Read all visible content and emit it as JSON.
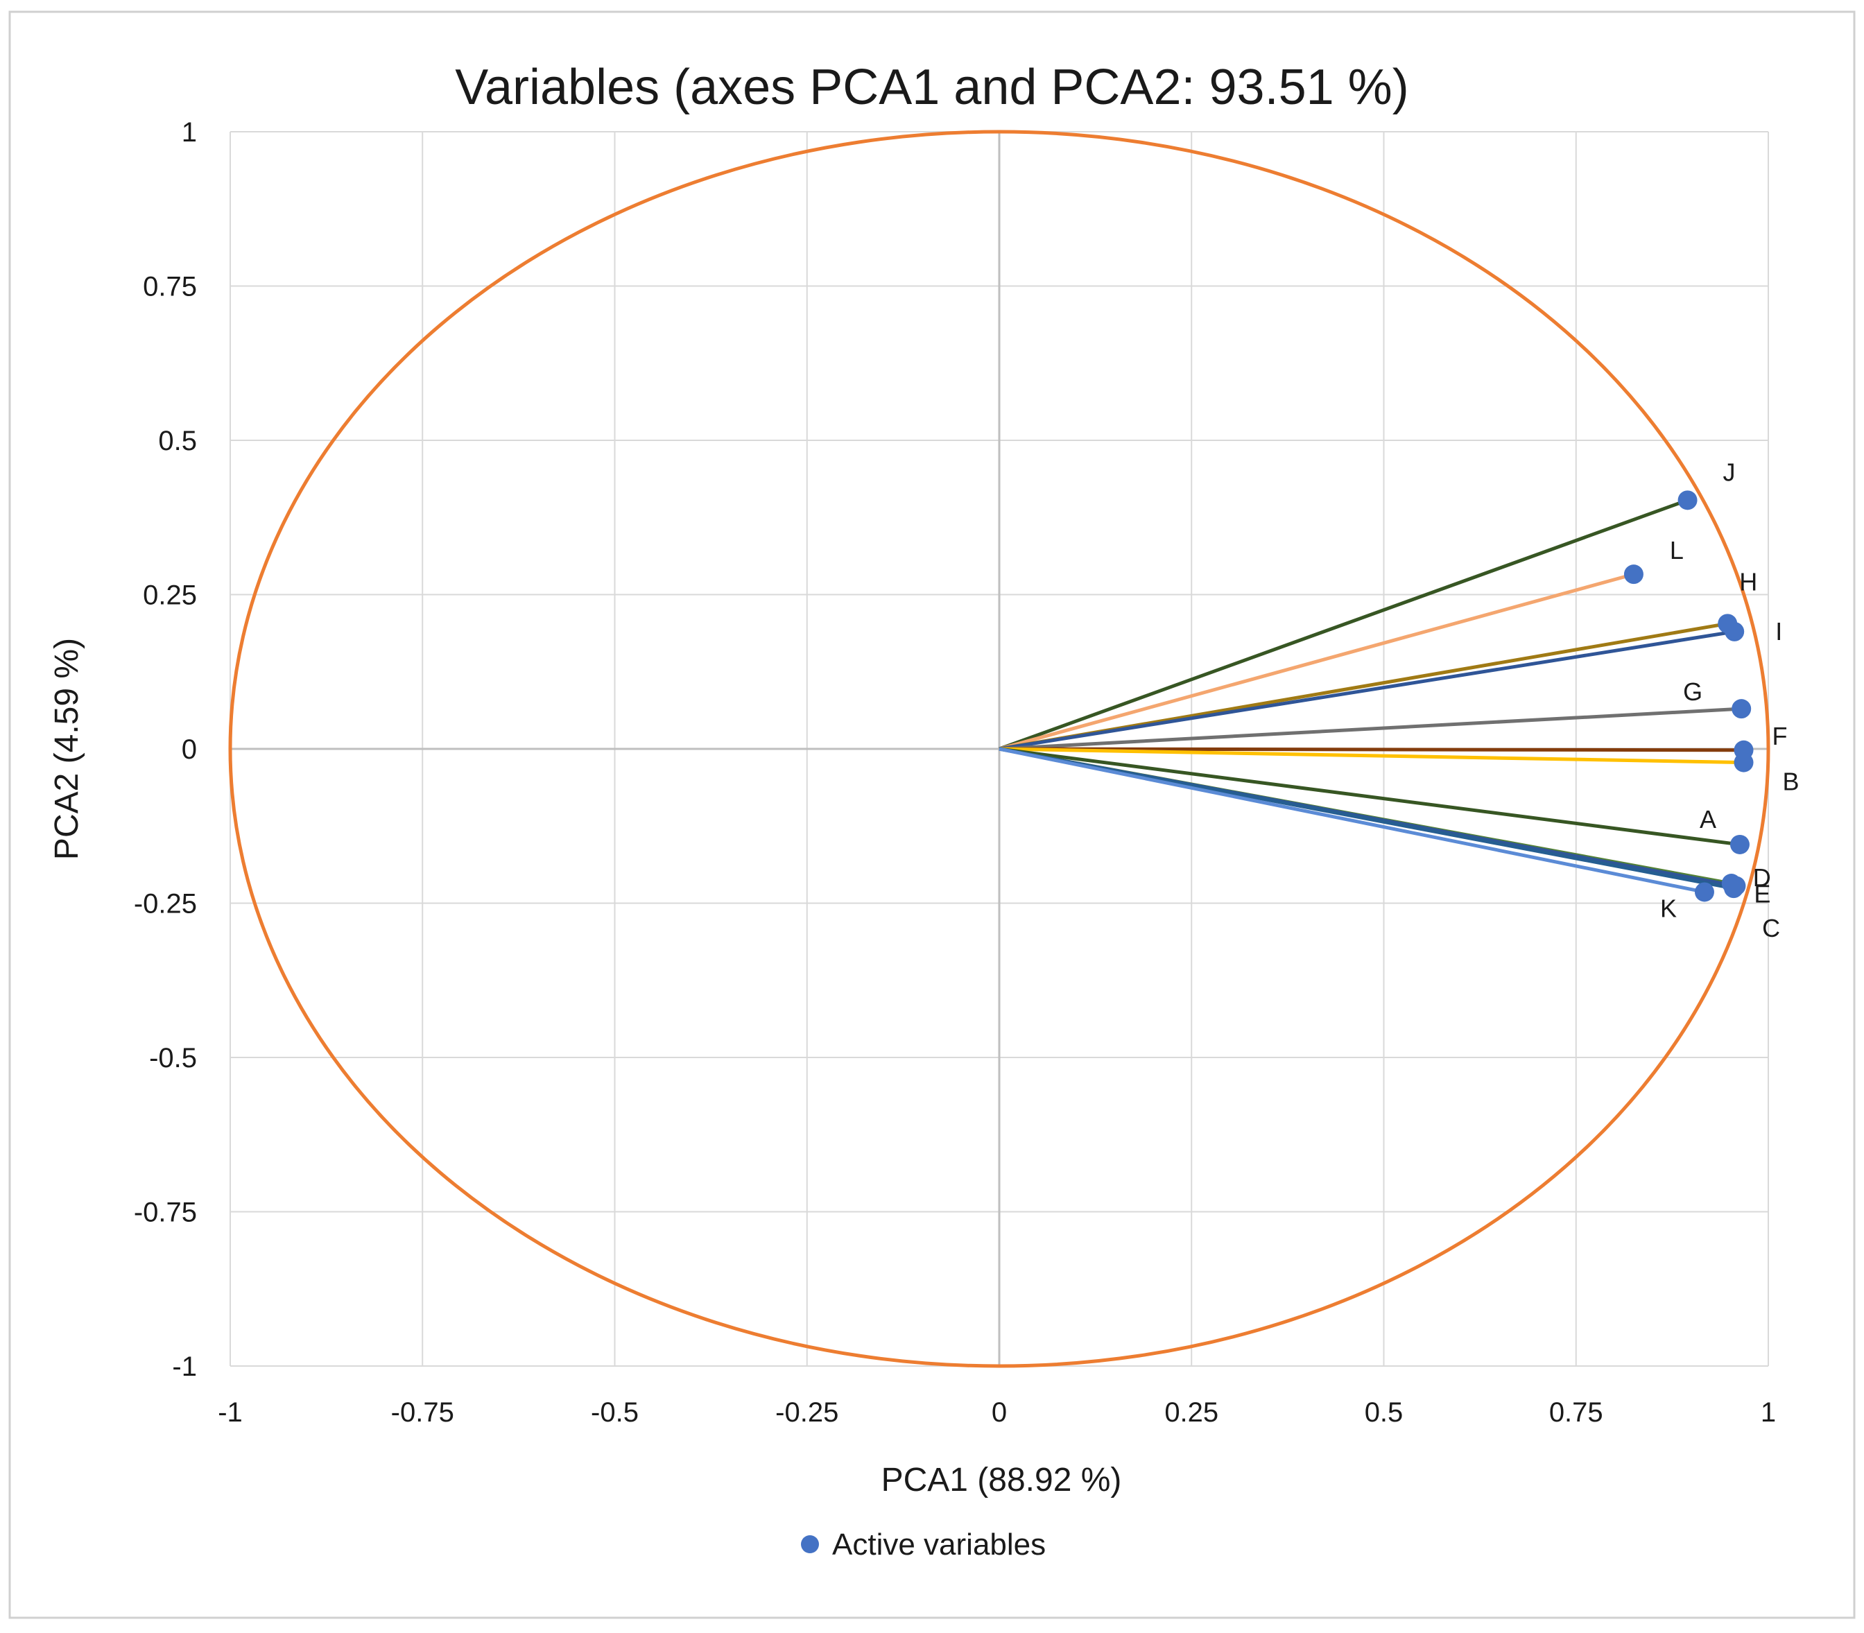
{
  "chart_data": {
    "type": "scatter",
    "subtype": "pca-correlation-circle",
    "title": "Variables (axes PCA1 and PCA2: 93.51 %)",
    "xlabel": "PCA1 (88.92 %)",
    "ylabel": "PCA2 (4.59 %)",
    "xlim": [
      -1,
      1
    ],
    "ylim": [
      -1,
      1
    ],
    "x_ticks": [
      {
        "value": -1,
        "label": "-1"
      },
      {
        "value": -0.75,
        "label": "-0.75"
      },
      {
        "value": -0.5,
        "label": "-0.5"
      },
      {
        "value": -0.25,
        "label": "-0.25"
      },
      {
        "value": 0,
        "label": "0"
      },
      {
        "value": 0.25,
        "label": "0.25"
      },
      {
        "value": 0.5,
        "label": "0.5"
      },
      {
        "value": 0.75,
        "label": "0.75"
      },
      {
        "value": 1,
        "label": "1"
      }
    ],
    "y_ticks": [
      {
        "value": 1,
        "label": "1"
      },
      {
        "value": 0.75,
        "label": "0.75"
      },
      {
        "value": 0.5,
        "label": "0.5"
      },
      {
        "value": 0.25,
        "label": "0.25"
      },
      {
        "value": 0,
        "label": "0"
      },
      {
        "value": -0.25,
        "label": "-0.25"
      },
      {
        "value": -0.5,
        "label": "-0.5"
      },
      {
        "value": -0.75,
        "label": "-0.75"
      },
      {
        "value": -1,
        "label": "-1"
      }
    ],
    "grid": true,
    "circle": {
      "radius": 1,
      "color": "#ED7D31"
    },
    "marker_color": "#4472C4",
    "legend": {
      "position": "bottom-center",
      "label": "Active variables"
    },
    "variables": [
      {
        "name": "J",
        "x": 0.895,
        "y": 0.403,
        "line_color": "#375623"
      },
      {
        "name": "L",
        "x": 0.825,
        "y": 0.283,
        "line_color": "#F4A66F"
      },
      {
        "name": "H",
        "x": 0.947,
        "y": 0.203,
        "line_color": "#A07A14"
      },
      {
        "name": "I",
        "x": 0.956,
        "y": 0.19,
        "line_color": "#2F5597"
      },
      {
        "name": "G",
        "x": 0.965,
        "y": 0.065,
        "line_color": "#707070"
      },
      {
        "name": "F",
        "x": 0.968,
        "y": -0.002,
        "line_color": "#843C0C"
      },
      {
        "name": "B",
        "x": 0.968,
        "y": -0.022,
        "line_color": "#FFC000"
      },
      {
        "name": "A",
        "x": 0.963,
        "y": -0.155,
        "line_color": "#375623"
      },
      {
        "name": "D",
        "x": 0.952,
        "y": -0.218,
        "line_color": "#548235"
      },
      {
        "name": "E",
        "x": 0.958,
        "y": -0.222,
        "line_color": "#2F5597"
      },
      {
        "name": "C",
        "x": 0.955,
        "y": -0.226,
        "line_color": "#255E91"
      },
      {
        "name": "K",
        "x": 0.917,
        "y": -0.232,
        "line_color": "#5B8BD6"
      }
    ]
  }
}
